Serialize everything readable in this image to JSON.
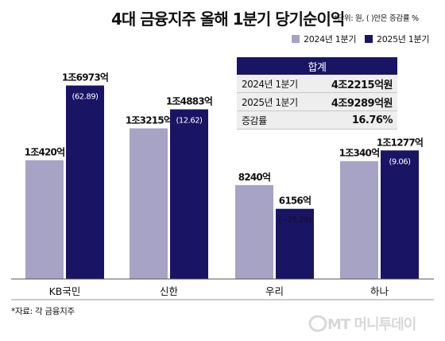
{
  "title": "4대 금융지주 올해 1분기 당기순이익",
  "unit_note": "*단위: 원, ( )안은 증감률 %",
  "source": "*자료: 각 금융지주",
  "watermark": "MT 머니투데이",
  "colors": {
    "series_2024": "#a6a3c4",
    "series_2025": "#1a1464",
    "table_header": "#1a1464"
  },
  "summary": {
    "header": "합계",
    "rows": [
      {
        "label": "2024년 1분기",
        "value": "4조2215억원"
      },
      {
        "label": "2025년 1분기",
        "value": "4조9289억원"
      },
      {
        "label": "증감률",
        "value": "16.76%"
      }
    ]
  },
  "chart_data": {
    "type": "bar",
    "title": "4대 금융지주 올해 1분기 당기순이익",
    "categories": [
      "KB국민",
      "신한",
      "우리",
      "하나"
    ],
    "series": [
      {
        "name": "2024년 1분기",
        "values": [
          10420,
          13215,
          8240,
          10340
        ],
        "labels": [
          "1조420억",
          "1조3215억",
          "8240억",
          "1조340억"
        ]
      },
      {
        "name": "2025년 1분기",
        "values": [
          16973,
          14883,
          6156,
          11277
        ],
        "labels": [
          "1조6973억",
          "1조4883억",
          "6156억",
          "1조1277억"
        ],
        "change_labels": [
          "(62.89)",
          "(12.62)",
          "(−25.29)",
          "(9.06)"
        ]
      }
    ],
    "ylim": [
      0,
      17500
    ],
    "grid": false,
    "legend": "top-right"
  }
}
